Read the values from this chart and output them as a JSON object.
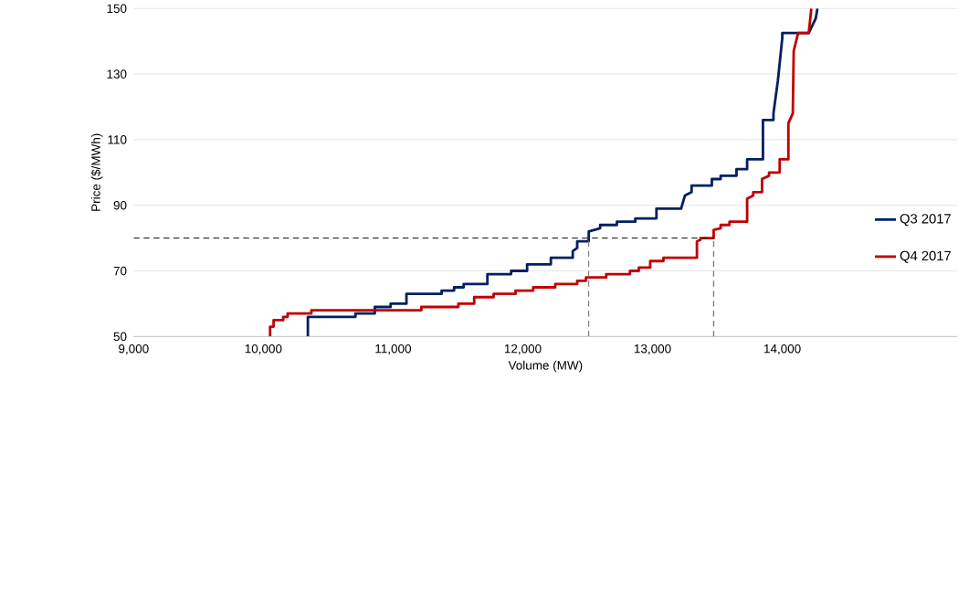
{
  "chart_data": {
    "type": "line",
    "xlabel": "Volume (MW)",
    "ylabel": "Price ($/MWh)",
    "xlim": [
      9000,
      15350
    ],
    "xticks": [
      {
        "value": 9000,
        "label": "9,000"
      },
      {
        "value": 10000,
        "label": "10,000"
      },
      {
        "value": 11000,
        "label": "11,000"
      },
      {
        "value": 12000,
        "label": "12,000"
      },
      {
        "value": 13000,
        "label": "13,000"
      },
      {
        "value": 14000,
        "label": "14,000"
      }
    ],
    "ylim": [
      50,
      150
    ],
    "yticks": [
      50,
      70,
      90,
      110,
      130,
      150
    ],
    "grid": "y",
    "legend": "right",
    "line_style": "solid",
    "marker": "none",
    "series": [
      {
        "name": "Q3 2017",
        "color": "#002060",
        "x": [
          10343,
          10343,
          10710,
          10710,
          10859,
          10859,
          10981,
          10981,
          11103,
          11103,
          11374,
          11374,
          11470,
          11470,
          11544,
          11544,
          11727,
          11727,
          11910,
          11910,
          12033,
          12033,
          12216,
          12216,
          12385,
          12385,
          12419,
          12419,
          12508,
          12508,
          12596,
          12596,
          12725,
          12725,
          12867,
          12867,
          13030,
          13030,
          13220,
          13250,
          13301,
          13301,
          13457,
          13457,
          13525,
          13525,
          13647,
          13647,
          13729,
          13729,
          13851,
          13851,
          13932,
          13932,
          13966,
          14000,
          14000,
          14115,
          14204,
          14258,
          14271
        ],
        "values": [
          50,
          56,
          56,
          57,
          57,
          59,
          59,
          60,
          60,
          63,
          63,
          64,
          64,
          65,
          65,
          66,
          66,
          69,
          69,
          70,
          70,
          72,
          72,
          74,
          74,
          76,
          77,
          79,
          79,
          82,
          83,
          84,
          84,
          85,
          85,
          86,
          86,
          89,
          89,
          93,
          94,
          96,
          96,
          98,
          98,
          99,
          99,
          101,
          101,
          104,
          104,
          116,
          116,
          118,
          128,
          141,
          142.5,
          142.5,
          142.5,
          147,
          150
        ]
      },
      {
        "name": "Q4 2017",
        "color": "#c00000",
        "x": [
          10052,
          10052,
          10079,
          10079,
          10153,
          10153,
          10187,
          10187,
          10370,
          10370,
          11218,
          11218,
          11503,
          11503,
          11625,
          11625,
          11775,
          11775,
          11944,
          11944,
          12080,
          12080,
          12250,
          12250,
          12419,
          12419,
          12487,
          12487,
          12643,
          12643,
          12826,
          12826,
          12894,
          12894,
          12982,
          12982,
          13084,
          13084,
          13342,
          13342,
          13369,
          13369,
          13471,
          13471,
          13525,
          13525,
          13593,
          13593,
          13729,
          13729,
          13776,
          13776,
          13844,
          13844,
          13898,
          13898,
          13980,
          13980,
          14047,
          14047,
          14081,
          14088,
          14122,
          14204,
          14224
        ],
        "values": [
          50,
          53,
          53,
          55,
          55,
          56,
          56,
          57,
          57,
          58,
          58,
          59,
          59,
          60,
          60,
          62,
          62,
          63,
          63,
          64,
          64,
          65,
          65,
          66,
          66,
          67,
          67,
          68,
          68,
          69,
          69,
          70,
          70,
          71,
          71,
          73,
          73,
          74,
          74,
          79,
          79.5,
          80,
          80,
          82.5,
          83,
          84,
          84,
          85,
          85,
          92,
          93,
          94,
          94,
          98,
          99,
          100,
          100,
          104,
          104,
          115,
          118,
          137,
          142.5,
          142.5,
          150
        ]
      },
      {
        "color": "#262626",
        "line_style": "dashed",
        "x": [
          9000,
          13471
        ],
        "values": [
          80,
          80
        ]
      },
      {
        "color": "#808080",
        "line_style": "dashed",
        "x": [
          12508,
          12508
        ],
        "values": [
          50,
          80
        ]
      },
      {
        "color": "#808080",
        "line_style": "dashed",
        "x": [
          13471,
          13471
        ],
        "values": [
          50,
          80
        ]
      }
    ]
  }
}
